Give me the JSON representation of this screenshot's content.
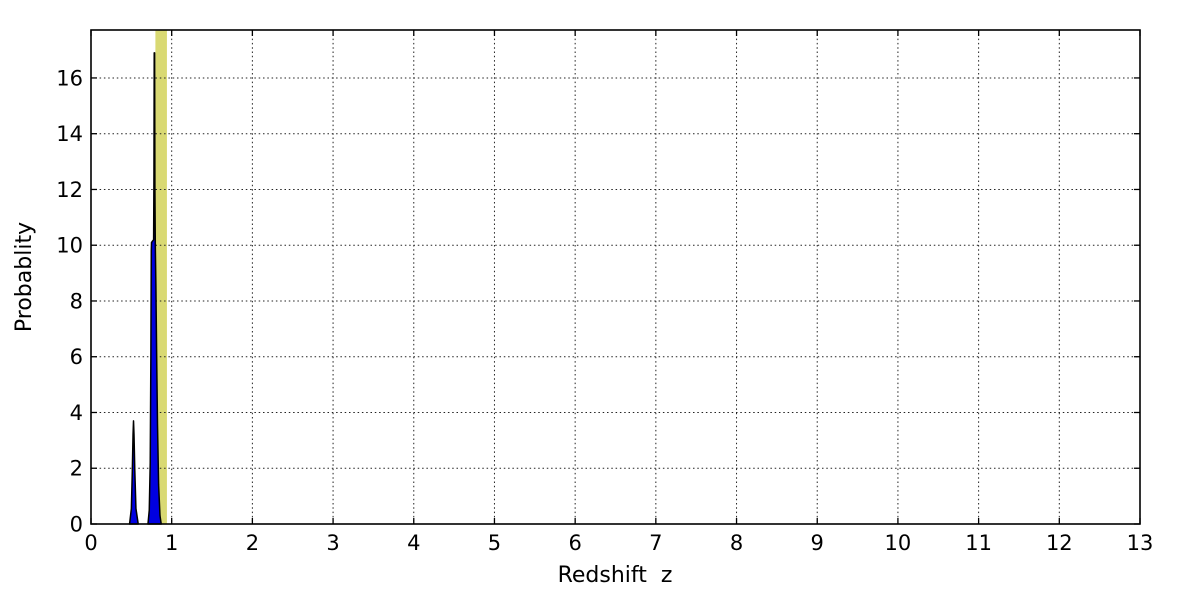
{
  "figure": {
    "background": "#ffffff",
    "frame_color": "#000000"
  },
  "chart_data": {
    "type": "area",
    "title": "",
    "xlabel": "Redshift  z",
    "ylabel": "Probablity",
    "xlim": [
      0,
      13
    ],
    "ylim": [
      0,
      17.72
    ],
    "xticks": [
      0,
      1,
      2,
      3,
      4,
      5,
      6,
      7,
      8,
      9,
      10,
      11,
      12,
      13
    ],
    "yticks": [
      0,
      2,
      4,
      6,
      8,
      10,
      12,
      14,
      16
    ],
    "grid": {
      "on": true,
      "style": "dotted",
      "color": "#222222"
    },
    "legend": {
      "visible": false
    },
    "band": {
      "name": "confidence-band",
      "x_start": 0.798,
      "x_end": 0.941,
      "color": "#d9d973"
    },
    "series": [
      {
        "name": "pdf-peak-low-z",
        "fill": "#0000e0",
        "stroke": "#000000",
        "points": [
          [
            0.478,
            0
          ],
          [
            0.5,
            0.55
          ],
          [
            0.512,
            1.9
          ],
          [
            0.521,
            3.2
          ],
          [
            0.527,
            3.7
          ],
          [
            0.533,
            3.2
          ],
          [
            0.543,
            1.9
          ],
          [
            0.557,
            0.55
          ],
          [
            0.585,
            0
          ]
        ]
      },
      {
        "name": "pdf-peak-main",
        "fill": "#0000e0",
        "stroke": "#000000",
        "points": [
          [
            0.706,
            0
          ],
          [
            0.722,
            0.5
          ],
          [
            0.734,
            2.2
          ],
          [
            0.742,
            6.0
          ],
          [
            0.747,
            9.8
          ],
          [
            0.75,
            10.1
          ],
          [
            0.776,
            10.2
          ],
          [
            0.78,
            12.5
          ],
          [
            0.7835,
            16.9
          ],
          [
            0.7885,
            16.9
          ],
          [
            0.792,
            12.0
          ],
          [
            0.797,
            10.0
          ],
          [
            0.804,
            8.6
          ],
          [
            0.813,
            6.2
          ],
          [
            0.824,
            3.6
          ],
          [
            0.838,
            1.4
          ],
          [
            0.855,
            0.3
          ],
          [
            0.87,
            0
          ]
        ]
      }
    ]
  }
}
